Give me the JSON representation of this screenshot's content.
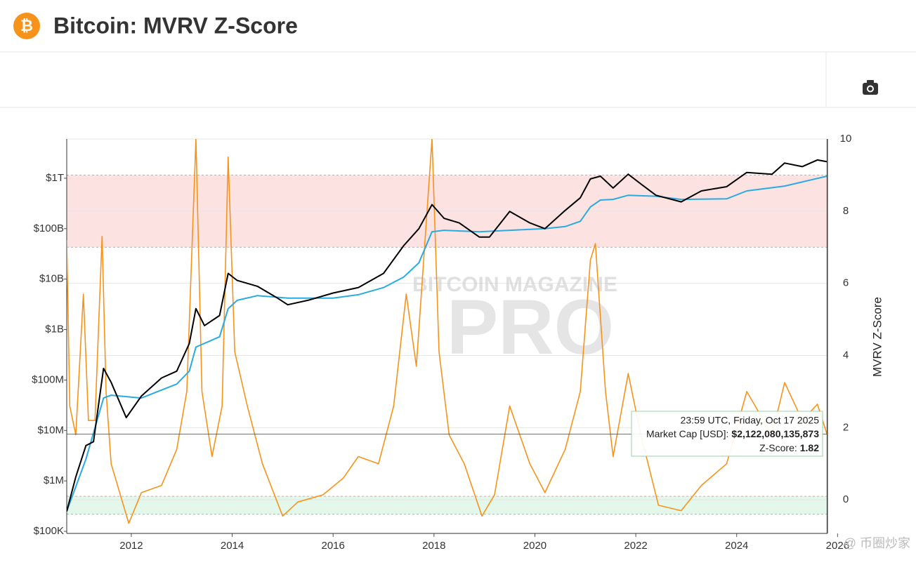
{
  "header": {
    "title": "Bitcoin: MVRV Z-Score"
  },
  "chart_data": {
    "type": "line",
    "xlim": [
      2010.72,
      2025.8
    ],
    "xticks": [
      2012,
      2014,
      2016,
      2018,
      2020,
      2022,
      2024,
      2026
    ],
    "ylim": [
      91000,
      6000000000000
    ],
    "ylog": true,
    "yticks": [
      {
        "value": 100000,
        "label": "$100K"
      },
      {
        "value": 1000000,
        "label": "$1M"
      },
      {
        "value": 10000000,
        "label": "$10M"
      },
      {
        "value": 100000000,
        "label": "$100M"
      },
      {
        "value": 1000000000,
        "label": "$1B"
      },
      {
        "value": 10000000000,
        "label": "$10B"
      },
      {
        "value": 100000000000,
        "label": "$100B"
      },
      {
        "value": 1000000000000,
        "label": "$1T"
      }
    ],
    "y2lim": [
      -0.93,
      10
    ],
    "y2ticks": [
      0,
      2,
      4,
      6,
      8,
      10
    ],
    "y2label": "MVRV Z-Score",
    "grid": true,
    "bands": [
      {
        "axis": "y2",
        "range": [
          7,
          9
        ],
        "color": "#fde2e2"
      },
      {
        "axis": "y2",
        "range": [
          -0.4,
          0.1
        ],
        "color": "#e3f7ea"
      }
    ],
    "series": [
      {
        "name": "Market Cap [USD]",
        "color": "#000000",
        "axis": "y",
        "x": [
          2010.72,
          2010.9,
          2011.1,
          2011.25,
          2011.45,
          2011.6,
          2011.9,
          2012.2,
          2012.6,
          2012.9,
          2013.15,
          2013.28,
          2013.45,
          2013.75,
          2013.92,
          2014.1,
          2014.5,
          2014.9,
          2015.1,
          2015.5,
          2016.0,
          2016.5,
          2017.0,
          2017.4,
          2017.7,
          2017.96,
          2018.2,
          2018.5,
          2018.9,
          2019.1,
          2019.5,
          2019.9,
          2020.2,
          2020.6,
          2020.9,
          2021.1,
          2021.3,
          2021.55,
          2021.85,
          2022.1,
          2022.4,
          2022.9,
          2023.3,
          2023.8,
          2024.2,
          2024.7,
          2024.95,
          2025.3,
          2025.6,
          2025.79
        ],
        "values": [
          250000,
          1200000,
          5000000,
          6000000,
          170000000,
          90000000,
          18000000,
          48000000,
          110000000,
          150000000,
          530000000,
          2600000000,
          1200000000,
          1900000000,
          13000000000,
          9400000000,
          7200000000,
          4200000000,
          3100000000,
          3800000000,
          5300000000,
          6800000000,
          13000000000,
          46000000000,
          100000000000,
          300000000000,
          160000000000,
          130000000000,
          68000000000,
          68000000000,
          220000000000,
          130000000000,
          100000000000,
          230000000000,
          410000000000,
          970000000000,
          1100000000000,
          640000000000,
          1200000000000,
          770000000000,
          460000000000,
          340000000000,
          560000000000,
          680000000000,
          1300000000000,
          1200000000000,
          2000000000000,
          1700000000000,
          2300000000000,
          2122080135873
        ]
      },
      {
        "color": "#29abe2",
        "axis": "y",
        "x": [
          2010.72,
          2011.1,
          2011.45,
          2011.6,
          2012.2,
          2012.9,
          2013.15,
          2013.28,
          2013.75,
          2013.92,
          2014.1,
          2014.5,
          2015.1,
          2016.0,
          2016.5,
          2017.0,
          2017.4,
          2017.7,
          2017.96,
          2018.2,
          2018.9,
          2019.5,
          2020.2,
          2020.6,
          2020.9,
          2021.1,
          2021.3,
          2021.55,
          2021.85,
          2022.4,
          2022.9,
          2023.8,
          2024.2,
          2024.95,
          2025.79
        ],
        "values": [
          250000,
          2700000,
          44000000,
          50000000,
          44000000,
          83000000,
          150000000,
          450000000,
          720000000,
          2600000000,
          3800000000,
          4700000000,
          4200000000,
          4200000000,
          4900000000,
          6800000000,
          11000000000,
          21000000000,
          87000000000,
          93000000000,
          87000000000,
          93000000000,
          100000000000,
          110000000000,
          140000000000,
          270000000000,
          370000000000,
          380000000000,
          460000000000,
          440000000000,
          380000000000,
          390000000000,
          560000000000,
          700000000000,
          1100000000000
        ]
      },
      {
        "name": "Z-Score",
        "color": "#f7931a",
        "axis": "y2",
        "x": [
          2010.72,
          2010.78,
          2010.9,
          2011.05,
          2011.15,
          2011.28,
          2011.42,
          2011.5,
          2011.6,
          2011.95,
          2012.2,
          2012.6,
          2012.9,
          2013.1,
          2013.28,
          2013.4,
          2013.6,
          2013.8,
          2013.92,
          2014.05,
          2014.3,
          2014.6,
          2015.0,
          2015.3,
          2015.8,
          2016.2,
          2016.5,
          2016.9,
          2017.2,
          2017.45,
          2017.65,
          2017.96,
          2018.1,
          2018.3,
          2018.6,
          2018.95,
          2019.2,
          2019.5,
          2019.9,
          2020.2,
          2020.6,
          2020.9,
          2021.1,
          2021.2,
          2021.4,
          2021.55,
          2021.85,
          2022.1,
          2022.45,
          2022.9,
          2023.3,
          2023.8,
          2024.2,
          2024.7,
          2024.95,
          2025.3,
          2025.6,
          2025.79
        ],
        "values": [
          7.2,
          2.6,
          1.8,
          5.7,
          2.2,
          2.2,
          7.3,
          3.0,
          1.0,
          -0.65,
          0.2,
          0.4,
          1.4,
          3.0,
          10.0,
          3.0,
          1.2,
          2.6,
          9.5,
          4.1,
          2.6,
          1.0,
          -0.45,
          -0.06,
          0.14,
          0.6,
          1.2,
          1.0,
          2.6,
          5.7,
          3.7,
          10.0,
          4.1,
          1.8,
          1.0,
          -0.45,
          0.14,
          2.6,
          1.0,
          0.2,
          1.4,
          3.0,
          6.65,
          7.1,
          3.0,
          1.2,
          3.5,
          1.8,
          -0.15,
          -0.3,
          0.4,
          1.0,
          3.0,
          1.8,
          3.25,
          2.2,
          2.65,
          1.82
        ]
      }
    ],
    "watermark": [
      "BITCOIN MAGAZINE",
      "PRO"
    ],
    "tooltip": {
      "time": "23:59 UTC, Friday, Oct 17 2025",
      "market_cap_label": "Market Cap [USD]:",
      "market_cap_value": "$2,122,080,135,873",
      "z_label": "Z-Score:",
      "z_value": "1.82"
    },
    "credit": "@ 币圈炒家"
  }
}
